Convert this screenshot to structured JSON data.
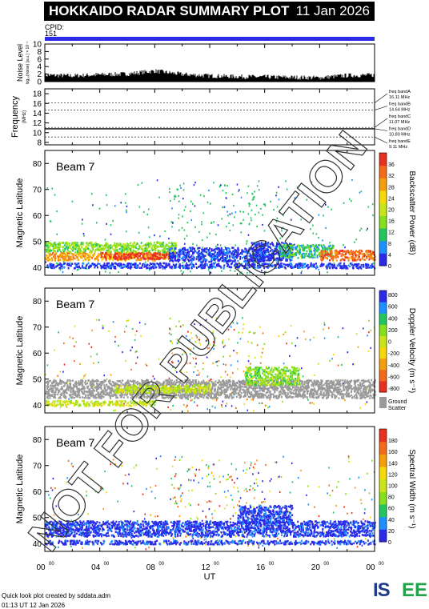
{
  "header": {
    "title": "HOKKAIDO RADAR SUMMARY PLOT",
    "date": "11 Jan 2026"
  },
  "cpid": {
    "label": "CPID:",
    "value": "151",
    "color": "#2a2ae8"
  },
  "watermark": "NOT FOR PUBLICATION",
  "footer": {
    "line1": "Quick look plot created by sddata.adm",
    "line2": "01:13 UT 12 Jan 2026"
  },
  "logo": {
    "text_a": "IS",
    "text_b": "EE"
  },
  "chart_data": [
    {
      "type": "line",
      "name": "noise",
      "ylabel": "Noise Level",
      "ylabel_sub": "log₁₀(noise) [a.u.] × 10⁻¹",
      "ylim": [
        0,
        10
      ],
      "yticks": [
        "0",
        "2",
        "4",
        "6",
        "8",
        "10"
      ],
      "x": [
        0,
        2,
        4,
        6,
        8,
        10,
        12,
        14,
        16,
        18,
        20,
        22,
        24
      ],
      "values": [
        1.5,
        1.3,
        1.6,
        1.8,
        2.6,
        1.7,
        1.3,
        1.1,
        1.0,
        0.9,
        0.8,
        1.4,
        1.5
      ]
    },
    {
      "type": "line",
      "name": "frequency",
      "ylabel": "Frequency",
      "ylabel_sub": "(MHz)",
      "ylim": [
        7.5,
        19
      ],
      "yticks": [
        "8",
        "10",
        "12",
        "14",
        "16",
        "18"
      ],
      "bands": [
        {
          "label": "freq bandA",
          "value": "16.11 MHz",
          "freq": 16.11
        },
        {
          "label": "freq bandB",
          "value": "14.64 MHz",
          "freq": 14.64
        },
        {
          "label": "freq bandC",
          "value": "11.07 MHz",
          "freq": 11.07
        },
        {
          "label": "freq bandD",
          "value": "10.80 MHz",
          "freq": 10.8
        },
        {
          "label": "freq bandE",
          "value": "9.11 MHz",
          "freq": 9.11
        }
      ],
      "operating_freq": 10.8
    },
    {
      "type": "heatmap",
      "beam_label": "Beam  7",
      "ylabel": "Magnetic Latitude",
      "ylim": [
        37,
        85
      ],
      "yticks": [
        "40",
        "50",
        "60",
        "70",
        "80"
      ],
      "colorbar": {
        "label": "Backscatter Power (dB)",
        "ticks": [
          "0",
          "4",
          "8",
          "12",
          "16",
          "20",
          "24",
          "28",
          "32",
          "36"
        ],
        "colors": [
          "#2a2ae8",
          "#1e90ff",
          "#22c55e",
          "#86e01e",
          "#c9e41a",
          "#f5d90a",
          "#f59e0b",
          "#f36a1c",
          "#e83020"
        ]
      },
      "regions": [
        {
          "x0": 0.0,
          "x1": 9.5,
          "y0": 46,
          "y1": 50,
          "level": 3
        },
        {
          "x0": 0.0,
          "x1": 9.5,
          "y0": 43,
          "y1": 46,
          "level": 6
        },
        {
          "x0": 4.0,
          "x1": 9.0,
          "y0": 43.5,
          "y1": 46,
          "level": 8
        },
        {
          "x0": 9.0,
          "x1": 16.0,
          "y0": 42.5,
          "y1": 48,
          "level": 0
        },
        {
          "x0": 15.0,
          "x1": 18.0,
          "y0": 43,
          "y1": 50,
          "level": 0
        },
        {
          "x0": 17.0,
          "x1": 21.0,
          "y0": 44,
          "y1": 49,
          "level": 2
        },
        {
          "x0": 20.0,
          "x1": 24.0,
          "y0": 43,
          "y1": 47,
          "level": 7
        },
        {
          "x0": 0.0,
          "x1": 24.0,
          "y0": 40,
          "y1": 42,
          "level": 0
        }
      ]
    },
    {
      "type": "heatmap",
      "beam_label": "Beam  7",
      "ylabel": "Magnetic Latitude",
      "ylim": [
        37,
        85
      ],
      "yticks": [
        "40",
        "50",
        "60",
        "70",
        "80"
      ],
      "colorbar": {
        "label": "Doppler Velocity (m s⁻¹)",
        "ticks": [
          "800",
          "600",
          "400",
          "200",
          "0",
          "-200",
          "-400",
          "-600",
          "-800"
        ],
        "colors": [
          "#2a2ae8",
          "#1e90ff",
          "#22c55e",
          "#86e01e",
          "#c9e41a",
          "#f5d90a",
          "#f59e0b",
          "#f36a1c",
          "#e83020"
        ],
        "ground_label": "Ground",
        "ground_label2": "Scatter",
        "ground_color": "#9a9a9a"
      },
      "regions": [
        {
          "x0": 0.0,
          "x1": 24.0,
          "y0": 43,
          "y1": 50,
          "level": -1
        },
        {
          "x0": 0.0,
          "x1": 8.0,
          "y0": 40,
          "y1": 42,
          "level": 4
        },
        {
          "x0": 14.5,
          "x1": 18.5,
          "y0": 48,
          "y1": 55,
          "level": 3
        },
        {
          "x0": 5.0,
          "x1": 12.0,
          "y0": 45,
          "y1": 48,
          "level": 4
        }
      ]
    },
    {
      "type": "heatmap",
      "beam_label": "Beam  7",
      "ylabel": "Magnetic Latitude",
      "ylim": [
        37,
        85
      ],
      "yticks": [
        "40",
        "50",
        "60",
        "70",
        "80"
      ],
      "colorbar": {
        "label": "Spectral Width (m s⁻¹)",
        "ticks": [
          "0",
          "20",
          "40",
          "60",
          "80",
          "100",
          "120",
          "140",
          "160",
          "180"
        ],
        "colors": [
          "#2a2ae8",
          "#1e90ff",
          "#22c55e",
          "#86e01e",
          "#c9e41a",
          "#f5d90a",
          "#f59e0b",
          "#f36a1c",
          "#e83020"
        ]
      },
      "regions": [
        {
          "x0": 0.0,
          "x1": 24.0,
          "y0": 43,
          "y1": 49,
          "level": 0
        },
        {
          "x0": 0.0,
          "x1": 24.0,
          "y0": 40,
          "y1": 41.5,
          "level": 0
        },
        {
          "x0": 14.0,
          "x1": 18.0,
          "y0": 48,
          "y1": 55,
          "level": 0
        }
      ]
    }
  ],
  "xaxis": {
    "label": "UT",
    "ticks": [
      "00",
      "04",
      "08",
      "12",
      "16",
      "20",
      "00"
    ],
    "tick_sup": "00",
    "xlim": [
      0,
      24
    ]
  }
}
